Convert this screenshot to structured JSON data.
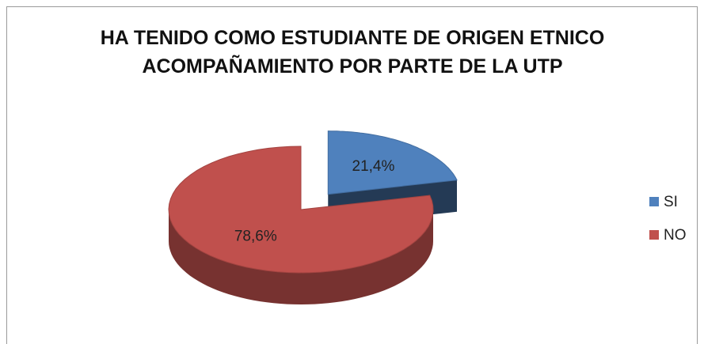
{
  "chart_data": {
    "type": "pie",
    "title": "HA TENIDO COMO ESTUDIANTE DE ORIGEN ETNICO ACOMPAÑAMIENTO POR PARTE DE LA UTP",
    "categories": [
      "SI",
      "NO"
    ],
    "values": [
      21.4,
      78.6
    ],
    "value_labels": [
      "21,4%",
      "78,6%"
    ],
    "colors": [
      "#4f81bd",
      "#c0504d"
    ],
    "legend": "right"
  }
}
